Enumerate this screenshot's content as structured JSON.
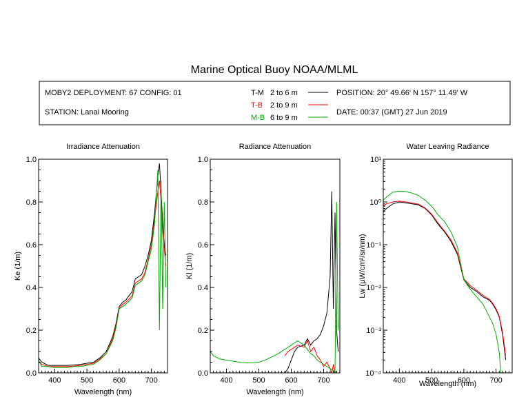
{
  "title": "Marine Optical Buoy NOAA/MLML",
  "info": {
    "deployment": "MOBY2 DEPLOYMENT: 67 CONFIG: 01",
    "station": "STATION: Lanai Mooring",
    "position": "POSITION: 20° 49.66' N   157° 11.49' W",
    "date": "DATE: 00:37 (GMT) 27 Jun 2019",
    "legend": [
      {
        "code": "T-M",
        "range": "2 to 6  m",
        "color": "#000000"
      },
      {
        "code": "T-B",
        "range": "2 to 9  m",
        "color": "#ff0000"
      },
      {
        "code": "M-B",
        "range": "6 to 9  m",
        "color": "#00aa00"
      }
    ]
  },
  "chart_data": [
    {
      "type": "line",
      "title": "Irradiance Attenuation",
      "xlabel": "Wavelength (nm)",
      "ylabel": "Ke  (1/m)",
      "xlim": [
        350,
        750
      ],
      "ylim": [
        0,
        1.0
      ],
      "xticks": [
        400,
        500,
        600,
        700
      ],
      "yticks": [
        0.0,
        0.2,
        0.4,
        0.6,
        0.8,
        1.0
      ],
      "ytick_labels": [
        "0.0",
        "0.2",
        "0.4",
        "0.6",
        "0.8",
        "1.0"
      ],
      "series": [
        {
          "name": "T-M",
          "color": "#000000",
          "x": [
            350,
            360,
            380,
            400,
            420,
            440,
            460,
            480,
            500,
            520,
            540,
            560,
            580,
            590,
            600,
            610,
            620,
            640,
            650,
            660,
            670,
            680,
            690,
            700,
            710,
            720,
            725,
            730,
            735,
            740,
            745
          ],
          "y": [
            0.07,
            0.05,
            0.035,
            0.035,
            0.035,
            0.035,
            0.037,
            0.04,
            0.045,
            0.05,
            0.07,
            0.1,
            0.17,
            0.23,
            0.31,
            0.33,
            0.34,
            0.38,
            0.44,
            0.45,
            0.46,
            0.5,
            0.55,
            0.62,
            0.75,
            0.92,
            0.98,
            0.85,
            0.7,
            0.6,
            0.55
          ]
        },
        {
          "name": "T-B",
          "color": "#ff0000",
          "x": [
            350,
            360,
            380,
            400,
            420,
            440,
            460,
            480,
            500,
            520,
            540,
            560,
            580,
            590,
            600,
            610,
            620,
            640,
            650,
            660,
            670,
            680,
            690,
            700,
            710,
            720,
            725,
            730,
            735,
            740,
            745
          ],
          "y": [
            0.05,
            0.04,
            0.03,
            0.03,
            0.03,
            0.03,
            0.032,
            0.035,
            0.04,
            0.045,
            0.065,
            0.09,
            0.16,
            0.22,
            0.3,
            0.32,
            0.33,
            0.36,
            0.42,
            0.43,
            0.44,
            0.47,
            0.53,
            0.6,
            0.72,
            0.85,
            0.9,
            0.8,
            0.66,
            0.58,
            0.5
          ]
        },
        {
          "name": "M-B",
          "color": "#00aa00",
          "x": [
            350,
            360,
            380,
            400,
            420,
            440,
            460,
            480,
            500,
            520,
            540,
            560,
            580,
            590,
            600,
            610,
            620,
            640,
            650,
            660,
            670,
            680,
            690,
            700,
            710,
            720,
            725,
            730,
            735,
            740,
            745
          ],
          "y": [
            0.06,
            0.03,
            0.03,
            0.025,
            0.025,
            0.025,
            0.03,
            0.03,
            0.035,
            0.04,
            0.06,
            0.09,
            0.15,
            0.21,
            0.3,
            0.31,
            0.32,
            0.35,
            0.41,
            0.42,
            0.43,
            0.46,
            0.52,
            0.58,
            0.7,
            0.95,
            0.2,
            0.9,
            0.3,
            0.8,
            0.4
          ]
        }
      ]
    },
    {
      "type": "line",
      "title": "Radiance Attenuation",
      "xlabel": "Wavelength (nm)",
      "ylabel": "Kl  (1/m)",
      "xlim": [
        350,
        750
      ],
      "ylim": [
        0,
        1.0
      ],
      "xticks": [
        400,
        500,
        600,
        700
      ],
      "yticks": [
        0.0,
        0.2,
        0.4,
        0.6,
        0.8,
        1.0
      ],
      "ytick_labels": [
        "0.0",
        "0.2",
        "0.4",
        "0.6",
        "0.8",
        "1.0"
      ],
      "series": [
        {
          "name": "T-M",
          "color": "#000000",
          "x": [
            580,
            590,
            600,
            610,
            620,
            640,
            650,
            660,
            670,
            680,
            690,
            700,
            710,
            720,
            725,
            730,
            735,
            740,
            745
          ],
          "y": [
            0.0,
            0.02,
            0.06,
            0.1,
            0.12,
            0.13,
            0.16,
            0.13,
            0.15,
            0.16,
            0.18,
            0.22,
            0.28,
            0.45,
            0.85,
            0.3,
            0.75,
            0.2,
            0.1
          ]
        },
        {
          "name": "T-B",
          "color": "#ff0000",
          "x": [
            580,
            590,
            600,
            610,
            620,
            640,
            650,
            660,
            670,
            680,
            690,
            700,
            710,
            720,
            725,
            730,
            735,
            740
          ],
          "y": [
            0.08,
            0.1,
            0.11,
            0.12,
            0.13,
            0.12,
            0.15,
            0.1,
            0.12,
            0.08,
            0.06,
            0.03,
            0.05,
            0.02,
            0.0,
            0.04,
            0.0,
            0.01
          ]
        },
        {
          "name": "M-B",
          "color": "#00aa00",
          "x": [
            350,
            360,
            380,
            400,
            420,
            440,
            460,
            480,
            500,
            520,
            540,
            560,
            580,
            590,
            600,
            610,
            620,
            640,
            650,
            660,
            670,
            680,
            690,
            700,
            710,
            720,
            730,
            735,
            740,
            745
          ],
          "y": [
            0.1,
            0.08,
            0.065,
            0.06,
            0.055,
            0.05,
            0.047,
            0.047,
            0.05,
            0.06,
            0.075,
            0.09,
            0.11,
            0.12,
            0.13,
            0.14,
            0.15,
            0.13,
            0.11,
            0.09,
            0.08,
            0.06,
            0.05,
            0.04,
            0.03,
            0.02,
            0.01,
            0.0,
            0.8,
            0.2
          ]
        }
      ]
    },
    {
      "type": "line",
      "title": "Water Leaving Radiance",
      "xlabel": "Wavelength (nm)",
      "ylabel": "Lw  (μW/cm²/sr/nm)",
      "xlim": [
        350,
        750
      ],
      "ylim": [
        0.0001,
        10
      ],
      "yscale": "log",
      "xticks": [
        400,
        500,
        600,
        700
      ],
      "yticks": [
        0.0001,
        0.001,
        0.01,
        0.1,
        1,
        10
      ],
      "ytick_labels": [
        "10⁻⁴",
        "10⁻³",
        "10⁻²",
        "10⁻¹",
        "10⁰",
        "10¹"
      ],
      "series": [
        {
          "name": "T-M",
          "color": "#000000",
          "x": [
            350,
            360,
            370,
            380,
            400,
            420,
            440,
            460,
            480,
            500,
            520,
            540,
            560,
            580,
            600,
            620,
            640,
            660,
            680,
            690,
            700,
            710,
            720,
            730
          ],
          "y": [
            0.6,
            0.7,
            0.8,
            0.9,
            1.0,
            0.95,
            0.9,
            0.85,
            0.7,
            0.5,
            0.3,
            0.2,
            0.12,
            0.06,
            0.015,
            0.01,
            0.008,
            0.006,
            0.005,
            0.004,
            0.003,
            0.002,
            0.0008,
            0.0002
          ]
        },
        {
          "name": "T-B",
          "color": "#ff0000",
          "x": [
            350,
            360,
            370,
            380,
            400,
            420,
            440,
            460,
            480,
            500,
            520,
            540,
            560,
            580,
            600,
            620,
            640,
            660,
            680,
            690,
            700,
            710,
            720,
            730
          ],
          "y": [
            0.8,
            0.9,
            0.95,
            1.0,
            1.05,
            1.0,
            0.95,
            0.88,
            0.72,
            0.52,
            0.32,
            0.21,
            0.13,
            0.065,
            0.016,
            0.011,
            0.0085,
            0.0065,
            0.0052,
            0.0042,
            0.0032,
            0.0021,
            0.0009,
            0.00025
          ]
        },
        {
          "name": "M-B",
          "color": "#00aa00",
          "x": [
            350,
            360,
            370,
            380,
            400,
            420,
            440,
            460,
            480,
            500,
            520,
            540,
            560,
            580,
            600,
            620,
            640,
            660,
            680,
            690,
            700,
            710,
            715
          ],
          "y": [
            1.1,
            1.3,
            1.5,
            1.7,
            1.8,
            1.75,
            1.6,
            1.4,
            1.1,
            0.8,
            0.5,
            0.35,
            0.2,
            0.09,
            0.015,
            0.009,
            0.006,
            0.004,
            0.002,
            0.0014,
            0.0008,
            0.0003,
            0.0001
          ]
        }
      ]
    }
  ]
}
